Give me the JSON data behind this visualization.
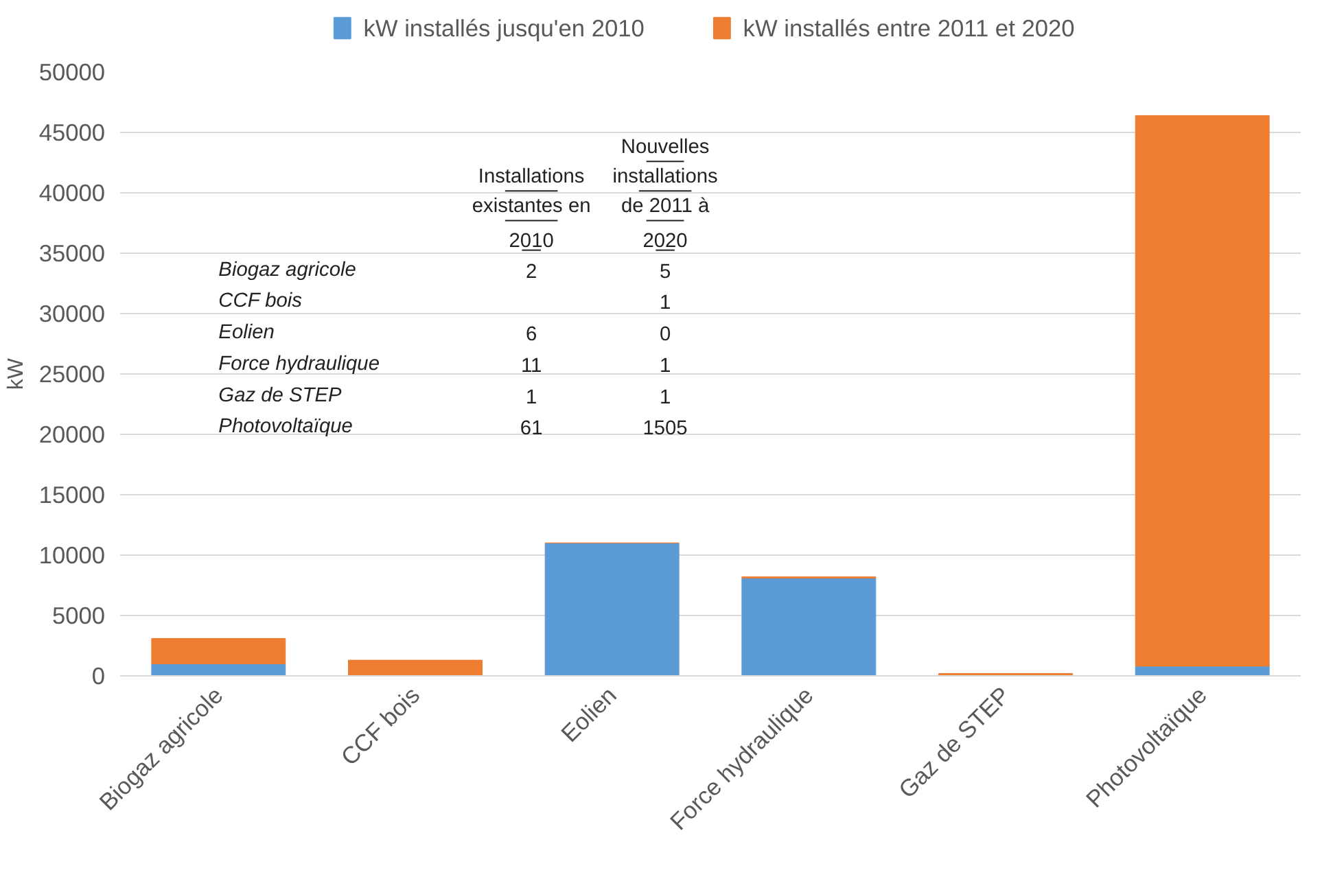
{
  "chart_data": [
    {
      "type": "bar",
      "stacked": true,
      "ylabel": "kW",
      "categories": [
        "Biogaz agricole",
        "CCF bois",
        "Eolien",
        "Force hydraulique",
        "Gaz de STEP",
        "Photovoltaïque"
      ],
      "series": [
        {
          "name": "kW installés jusqu'en 2010",
          "color": "#5b9bd5",
          "values": [
            1000,
            0,
            11000,
            8100,
            null,
            800
          ]
        },
        {
          "name": "kW installés entre 2011 et 2020",
          "color": "#ed7d31",
          "values": [
            2100,
            1300,
            0,
            100,
            200,
            45600
          ]
        }
      ],
      "ylim": [
        0,
        50000
      ],
      "yticks": [
        0,
        5000,
        10000,
        15000,
        20000,
        25000,
        30000,
        35000,
        40000,
        45000,
        50000
      ],
      "grid": "y",
      "legend": "top"
    },
    {
      "type": "other",
      "data_labels": true,
      "categories": [
        "Biogaz agricole",
        "CCF bois",
        "Eolien",
        "Force hydraulique",
        "Gaz de STEP",
        "Photovoltaïque"
      ],
      "series": [
        {
          "name": "Installations\nexistantes en\n2010",
          "values": [
            2,
            null,
            6,
            11,
            1,
            61
          ]
        },
        {
          "name": "Nouvelles\ninstallations\nde 2011 à\n2020",
          "values": [
            5,
            1,
            0,
            1,
            1,
            1505
          ]
        }
      ]
    }
  ]
}
